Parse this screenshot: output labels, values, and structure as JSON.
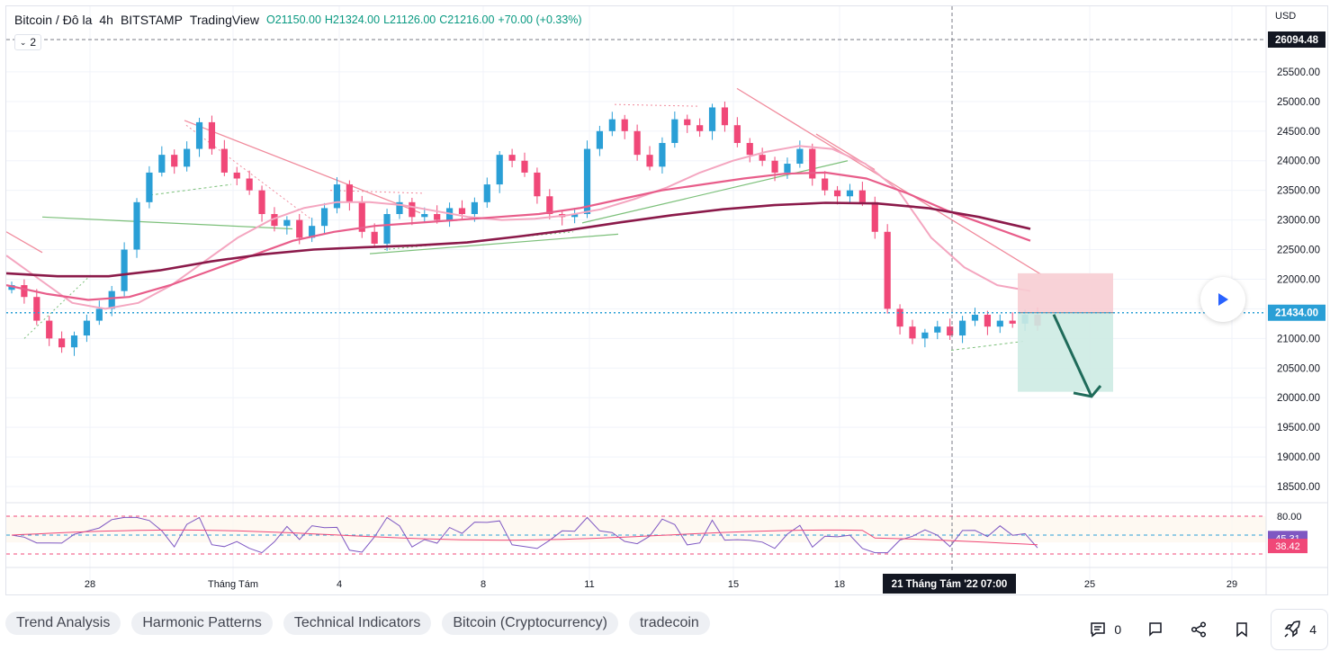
{
  "legend": {
    "symbol": "Bitcoin / Đô la",
    "interval": "4h",
    "exchange": "BITSTAMP",
    "source": "TradingView",
    "open": "O21150.00",
    "high": "H21324.00",
    "low": "L21126.00",
    "close": "C21216.00",
    "change": "+70.00 (+0.33%)",
    "indicators_count": "2"
  },
  "currency": "USD",
  "chart_data": {
    "type": "candlestick",
    "symbol": "BTCUSD",
    "timeframe": "4h",
    "y_ticks": [
      "25500.00",
      "25000.00",
      "24500.00",
      "24000.00",
      "23500.00",
      "23000.00",
      "22500.00",
      "22000.00",
      "21000.00",
      "20500.00",
      "20000.00",
      "19500.00",
      "19000.00",
      "18500.00"
    ],
    "x_ticks": [
      "28",
      "Tháng Tám",
      "4",
      "8",
      "11",
      "15",
      "18",
      "25",
      "29"
    ],
    "crosshair_time": "21 Tháng Tám '22   07:00",
    "price_labels": {
      "crosshair_price": "26094.48",
      "last_price": "21434.00"
    },
    "ylim": [
      18300,
      26300
    ],
    "close_series": [
      21900,
      21700,
      21300,
      21000,
      20850,
      21050,
      21300,
      21500,
      21800,
      22500,
      23300,
      23800,
      24100,
      23900,
      24200,
      24650,
      24200,
      23800,
      23700,
      23500,
      23100,
      22900,
      23000,
      22700,
      22900,
      23200,
      23600,
      23300,
      22800,
      22600,
      23100,
      23300,
      23050,
      23100,
      23000,
      23200,
      23100,
      23300,
      23600,
      24100,
      24000,
      23800,
      23400,
      23100,
      23050,
      23100,
      24200,
      24500,
      24700,
      24500,
      24100,
      23900,
      24300,
      24700,
      24600,
      24500,
      24900,
      24600,
      24300,
      24100,
      24000,
      23800,
      23950,
      24200,
      23700,
      23500,
      23400,
      23500,
      23300,
      22800,
      21500,
      21200,
      21000,
      21100,
      21200,
      21050,
      21300,
      21400,
      21200,
      21300,
      21250,
      21400,
      21216
    ],
    "ema_fast": [
      22400,
      22000,
      21600,
      21500,
      21600,
      21900,
      22300,
      22700,
      23000,
      23200,
      23300,
      23300,
      23250,
      23150,
      23050,
      23000,
      23020,
      23080,
      23180,
      23350,
      23550,
      23800,
      24000,
      24150,
      24250,
      24200,
      23950,
      23500,
      22700,
      22200,
      21900,
      21800
    ],
    "ema_mid": [
      21900,
      21750,
      21650,
      21700,
      21900,
      22150,
      22400,
      22650,
      22800,
      22900,
      22950,
      23000,
      23050,
      23100,
      23200,
      23350,
      23500,
      23600,
      23700,
      23780,
      23800,
      23700,
      23450,
      23150,
      22900,
      22650
    ],
    "ema_slow": [
      22100,
      22050,
      22050,
      22150,
      22300,
      22420,
      22500,
      22540,
      22570,
      22620,
      22720,
      22830,
      22960,
      23080,
      23180,
      23250,
      23290,
      23280,
      23200,
      23050,
      22850
    ],
    "position": {
      "entry": 21434,
      "stop": 22100,
      "target": 20100
    },
    "rsi": {
      "levels": {
        "upper": 80.0,
        "value": 45.31,
        "signal": 38.42
      },
      "labels": [
        "80.00",
        "45.31",
        "38.42"
      ]
    }
  },
  "tags": [
    "Trend Analysis",
    "Harmonic Patterns",
    "Technical Indicators",
    "Bitcoin (Cryptocurrency)",
    "tradecoin"
  ],
  "actions": {
    "comments": "0",
    "boosts": "4"
  },
  "colors": {
    "up": "#2a9fd6",
    "down": "#f04878",
    "ema_fast": "#f4a6c0",
    "ema_mid": "#e85d8a",
    "ema_slow": "#8b1a4a",
    "trend_green": "#7cc07a",
    "stop_zone": "#f7cdd3",
    "target_zone": "#cdebe3",
    "arrow": "#1f6b5a"
  }
}
